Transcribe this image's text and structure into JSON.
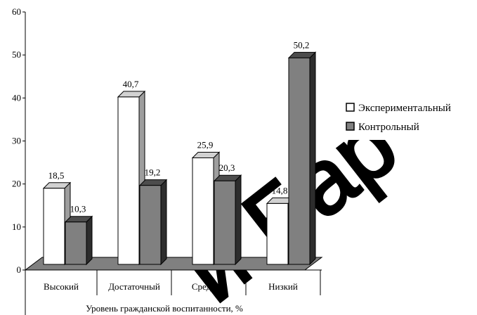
{
  "chart_data": {
    "type": "bar",
    "categories": [
      "Высокий",
      "Достаточный",
      "Средний",
      "Низкий"
    ],
    "series": [
      {
        "name": "Экспериментальный",
        "values": [
          18.5,
          40.7,
          25.9,
          14.8
        ],
        "labels": [
          "18,5",
          "40,7",
          "25,9",
          "14,8"
        ],
        "color": "#ffffff"
      },
      {
        "name": "Контрольный",
        "values": [
          10.3,
          19.2,
          20.3,
          50.2
        ],
        "labels": [
          "10,3",
          "19,2",
          "20,3",
          "50,2"
        ],
        "color": "#808080"
      }
    ],
    "xlabel": "Уровень гражданской воспитанности, %",
    "ylabel": "",
    "ylim": [
      0,
      60
    ],
    "yticks": [
      "0",
      "10",
      "20",
      "30",
      "40",
      "50",
      "60"
    ],
    "grid": false,
    "legend_position": "right",
    "style": "3d",
    "floor_color": "#808080",
    "watermark": "и Бар"
  }
}
